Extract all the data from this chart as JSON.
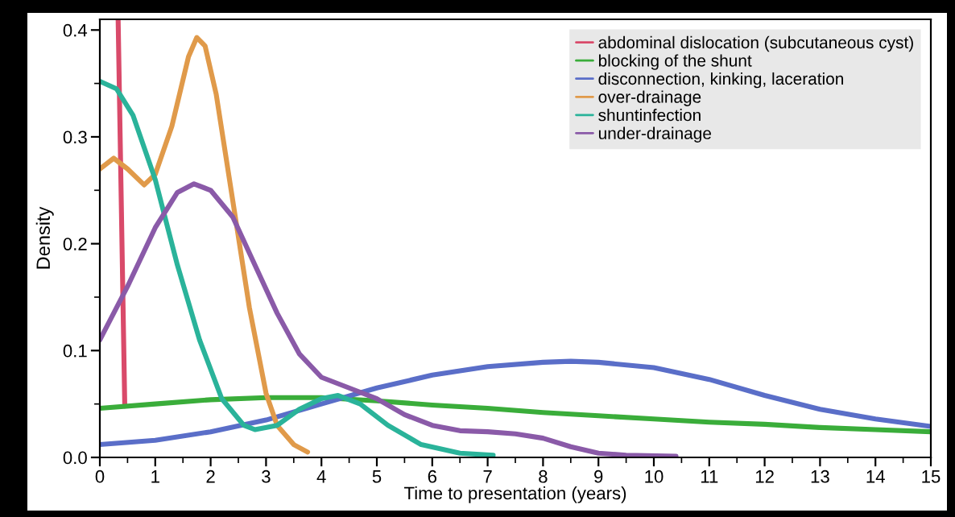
{
  "chart_data": {
    "type": "line",
    "xlabel": "Time to presentation (years)",
    "ylabel": "Density",
    "xlim": [
      0,
      15
    ],
    "ylim": [
      0,
      0.41
    ],
    "xticks": [
      0,
      1,
      2,
      3,
      4,
      5,
      6,
      7,
      8,
      9,
      10,
      11,
      12,
      13,
      14,
      15
    ],
    "yticks": [
      {
        "value": 0,
        "label": "0.0"
      },
      0.1,
      0.2,
      0.3,
      0.4
    ],
    "grid": false,
    "legend": "top right",
    "marker": "none",
    "line_style": "solid",
    "series": [
      {
        "name": "abdominal dislocation (subcutaneous cyst)",
        "color": "#d94a6a",
        "x": [
          0.33,
          0.45
        ],
        "values": [
          0.41,
          0.048
        ]
      },
      {
        "name": "blocking of the shunt",
        "color": "#3aad3a",
        "x": [
          0,
          1,
          2,
          3,
          4,
          5,
          6,
          7,
          8,
          9,
          10,
          11,
          12,
          13,
          14,
          15
        ],
        "values": [
          0.046,
          0.05,
          0.054,
          0.056,
          0.056,
          0.053,
          0.049,
          0.046,
          0.042,
          0.039,
          0.036,
          0.033,
          0.031,
          0.028,
          0.026,
          0.024
        ]
      },
      {
        "name": "disconnection, kinking, laceration",
        "color": "#5a6ec8",
        "x": [
          0,
          1,
          2,
          3,
          4,
          5,
          6,
          7,
          8,
          8.5,
          9,
          10,
          11,
          12,
          13,
          14,
          15
        ],
        "values": [
          0.012,
          0.016,
          0.024,
          0.035,
          0.05,
          0.065,
          0.077,
          0.085,
          0.089,
          0.09,
          0.089,
          0.084,
          0.073,
          0.058,
          0.045,
          0.036,
          0.029
        ]
      },
      {
        "name": "over-drainage",
        "color": "#e09a4a",
        "x": [
          0,
          0.25,
          0.5,
          0.8,
          1.0,
          1.3,
          1.6,
          1.75,
          1.9,
          2.1,
          2.4,
          2.7,
          3.0,
          3.2,
          3.5,
          3.75
        ],
        "values": [
          0.27,
          0.28,
          0.27,
          0.255,
          0.265,
          0.31,
          0.375,
          0.393,
          0.385,
          0.34,
          0.24,
          0.14,
          0.06,
          0.03,
          0.012,
          0.005
        ]
      },
      {
        "name": "shuntinfection",
        "color": "#2ab39a",
        "x": [
          0,
          0.3,
          0.6,
          1.0,
          1.4,
          1.8,
          2.2,
          2.6,
          2.8,
          3.2,
          3.6,
          4.0,
          4.3,
          4.7,
          5.2,
          5.8,
          6.5,
          7.1
        ],
        "values": [
          0.352,
          0.345,
          0.32,
          0.26,
          0.18,
          0.11,
          0.055,
          0.03,
          0.026,
          0.03,
          0.045,
          0.055,
          0.058,
          0.05,
          0.03,
          0.012,
          0.004,
          0.002
        ]
      },
      {
        "name": "under-drainage",
        "color": "#8a5aa8",
        "x": [
          0,
          0.5,
          1.0,
          1.4,
          1.7,
          2.0,
          2.4,
          2.8,
          3.2,
          3.6,
          4.0,
          4.5,
          5.0,
          5.5,
          6.0,
          6.5,
          7.0,
          7.5,
          8.0,
          8.5,
          9.0,
          9.5,
          10.4
        ],
        "values": [
          0.11,
          0.16,
          0.215,
          0.248,
          0.256,
          0.25,
          0.225,
          0.18,
          0.135,
          0.097,
          0.075,
          0.065,
          0.055,
          0.04,
          0.03,
          0.025,
          0.024,
          0.022,
          0.018,
          0.01,
          0.004,
          0.002,
          0.001
        ]
      }
    ]
  }
}
